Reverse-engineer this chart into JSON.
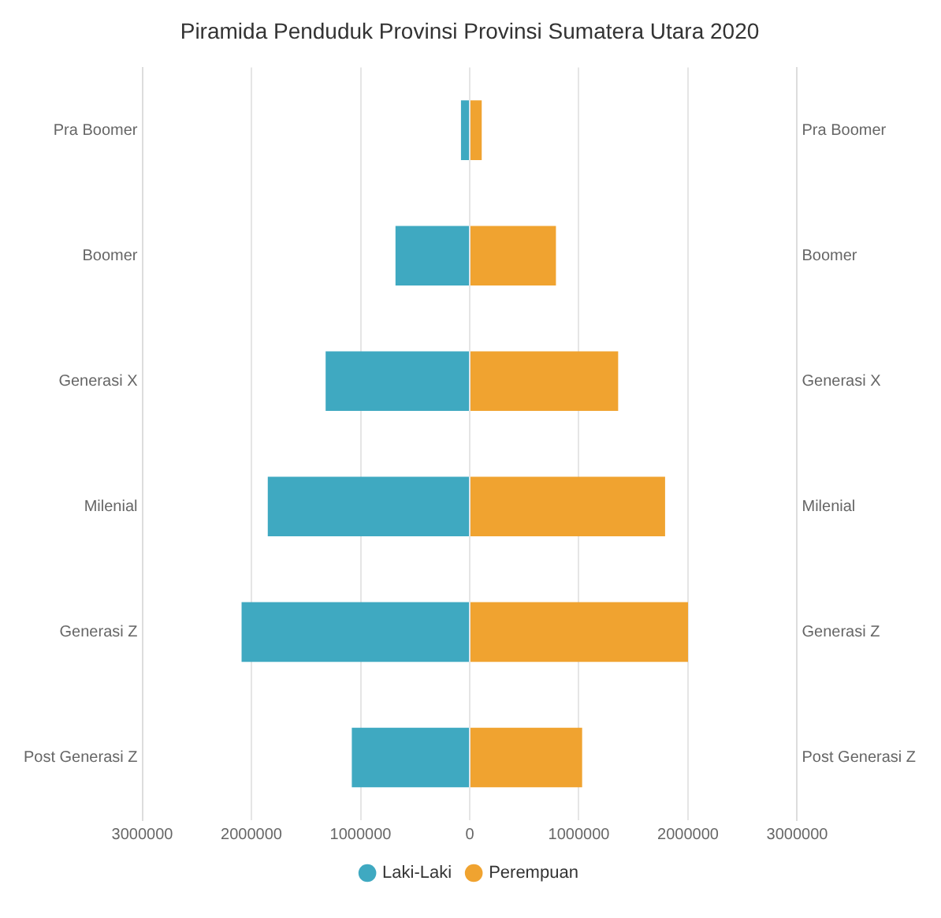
{
  "chart_data": {
    "type": "bar",
    "orientation": "horizontal",
    "stacked": true,
    "title": "Piramida Penduduk Provinsi Provinsi Sumatera Utara 2020",
    "categories": [
      "Pra Boomer",
      "Boomer",
      "Generasi X",
      "Milenial",
      "Generasi Z",
      "Post Generasi Z"
    ],
    "series": [
      {
        "name": "Laki-Laki",
        "color": "#3fa9c1",
        "values": [
          -80000,
          -680000,
          -1320000,
          -1850000,
          -2090000,
          -1080000
        ]
      },
      {
        "name": "Perempuan",
        "color": "#f0a330",
        "values": [
          110000,
          790000,
          1360000,
          1790000,
          2000000,
          1030000
        ]
      }
    ],
    "xlim": [
      -3000000,
      3000000
    ],
    "xticks": [
      {
        "value": -3000000,
        "label": "3000000"
      },
      {
        "value": -2000000,
        "label": "2000000"
      },
      {
        "value": -1000000,
        "label": "1000000"
      },
      0,
      1000000,
      2000000,
      3000000
    ],
    "grid": "x",
    "legend": "bottom"
  }
}
